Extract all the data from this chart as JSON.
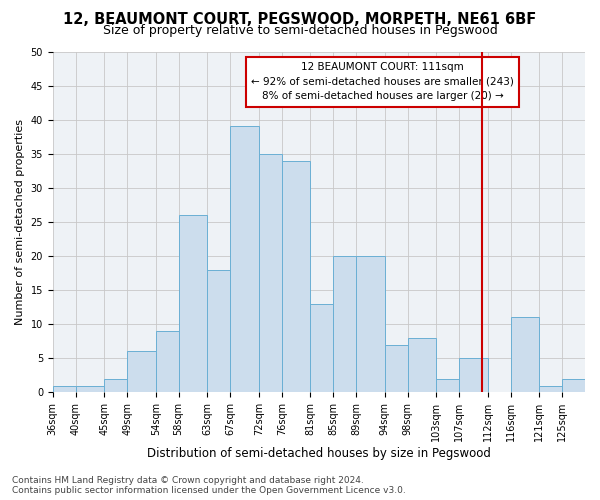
{
  "title": "12, BEAUMONT COURT, PEGSWOOD, MORPETH, NE61 6BF",
  "subtitle": "Size of property relative to semi-detached houses in Pegswood",
  "xlabel": "Distribution of semi-detached houses by size in Pegswood",
  "ylabel": "Number of semi-detached properties",
  "footer": "Contains HM Land Registry data © Crown copyright and database right 2024.\nContains public sector information licensed under the Open Government Licence v3.0.",
  "categories": [
    "36sqm",
    "40sqm",
    "45sqm",
    "49sqm",
    "54sqm",
    "58sqm",
    "63sqm",
    "67sqm",
    "72sqm",
    "76sqm",
    "81sqm",
    "85sqm",
    "89sqm",
    "94sqm",
    "98sqm",
    "103sqm",
    "107sqm",
    "112sqm",
    "116sqm",
    "121sqm",
    "125sqm"
  ],
  "values": [
    1,
    1,
    2,
    6,
    9,
    26,
    18,
    39,
    35,
    34,
    13,
    20,
    20,
    7,
    8,
    2,
    5,
    0,
    11,
    1,
    2
  ],
  "bar_color": "#ccdded",
  "bar_edge_color": "#6aafd4",
  "property_value": 111,
  "bin_edges": [
    36,
    40,
    45,
    49,
    54,
    58,
    63,
    67,
    72,
    76,
    81,
    85,
    89,
    94,
    98,
    103,
    107,
    112,
    116,
    121,
    125,
    129
  ],
  "vline_color": "#cc0000",
  "annotation_line1": "12 BEAUMONT COURT: 111sqm",
  "annotation_line2": "← 92% of semi-detached houses are smaller (243)",
  "annotation_line3": "8% of semi-detached houses are larger (20) →",
  "ylim": [
    0,
    50
  ],
  "yticks": [
    0,
    5,
    10,
    15,
    20,
    25,
    30,
    35,
    40,
    45,
    50
  ],
  "grid_color": "#c8c8c8",
  "background_color": "#eef2f6",
  "title_fontsize": 10.5,
  "subtitle_fontsize": 9,
  "xlabel_fontsize": 8.5,
  "ylabel_fontsize": 8,
  "tick_fontsize": 7,
  "annotation_fontsize": 7.5,
  "footer_fontsize": 6.5
}
